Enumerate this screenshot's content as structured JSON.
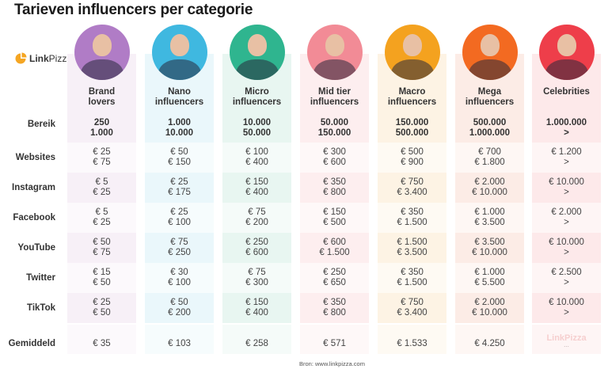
{
  "title": "Tarieven influencers per categorie",
  "logo": {
    "bold": "Link",
    "regular": "Pizza",
    "color": "#f5a623"
  },
  "row_labels": [
    "Bereik",
    "Websites",
    "Instagram",
    "Facebook",
    "YouTube",
    "Twitter",
    "TikTok",
    "Gemiddeld"
  ],
  "categories": [
    {
      "name_line1": "Brand",
      "name_line2": "lovers",
      "avatar_color": "#b07cc6",
      "band_color": "#f7f0f7",
      "light_color": "#fcf9fc",
      "bereik": [
        "250",
        "1.000"
      ],
      "websites": [
        "€ 25",
        "€ 75"
      ],
      "instagram": [
        "€ 5",
        "€ 25"
      ],
      "facebook": [
        "€ 5",
        "€ 25"
      ],
      "youtube": [
        "€ 50",
        "€ 75"
      ],
      "twitter": [
        "€ 15",
        "€ 50"
      ],
      "tiktok": [
        "€ 25",
        "€ 50"
      ],
      "gemiddeld": "€ 35"
    },
    {
      "name_line1": "Nano",
      "name_line2": "influencers",
      "avatar_color": "#3fb8e0",
      "band_color": "#eaf7fb",
      "light_color": "#f6fcfd",
      "bereik": [
        "1.000",
        "10.000"
      ],
      "websites": [
        "€ 50",
        "€ 150"
      ],
      "instagram": [
        "€ 25",
        "€ 175"
      ],
      "facebook": [
        "€ 25",
        "€ 100"
      ],
      "youtube": [
        "€ 75",
        "€ 250"
      ],
      "twitter": [
        "€ 30",
        "€ 100"
      ],
      "tiktok": [
        "€ 50",
        "€ 200"
      ],
      "gemiddeld": "€ 103"
    },
    {
      "name_line1": "Micro",
      "name_line2": "influencers",
      "avatar_color": "#2fb58f",
      "band_color": "#e8f6f1",
      "light_color": "#f5fbf9",
      "bereik": [
        "10.000",
        "50.000"
      ],
      "websites": [
        "€ 100",
        "€ 400"
      ],
      "instagram": [
        "€ 150",
        "€ 400"
      ],
      "facebook": [
        "€ 75",
        "€ 200"
      ],
      "youtube": [
        "€ 250",
        "€ 600"
      ],
      "twitter": [
        "€ 75",
        "€ 300"
      ],
      "tiktok": [
        "€ 150",
        "€ 400"
      ],
      "gemiddeld": "€ 258"
    },
    {
      "name_line1": "Mid tier",
      "name_line2": "influencers",
      "avatar_color": "#f28b96",
      "band_color": "#fdeeef",
      "light_color": "#fef8f8",
      "bereik": [
        "50.000",
        "150.000"
      ],
      "websites": [
        "€ 300",
        "€ 600"
      ],
      "instagram": [
        "€ 350",
        "€ 800"
      ],
      "facebook": [
        "€ 150",
        "€ 500"
      ],
      "youtube": [
        "€ 600",
        "€ 1.500"
      ],
      "twitter": [
        "€ 250",
        "€ 650"
      ],
      "tiktok": [
        "€ 350",
        "€ 800"
      ],
      "gemiddeld": "€ 571"
    },
    {
      "name_line1": "Macro",
      "name_line2": "influencers",
      "avatar_color": "#f4a21f",
      "band_color": "#fdf3e4",
      "light_color": "#fefaf3",
      "bereik": [
        "150.000",
        "500.000"
      ],
      "websites": [
        "€ 500",
        "€ 900"
      ],
      "instagram": [
        "€ 750",
        "€ 3.400"
      ],
      "facebook": [
        "€ 350",
        "€ 1.500"
      ],
      "youtube": [
        "€ 1.500",
        "€ 3.500"
      ],
      "twitter": [
        "€ 350",
        "€ 1.500"
      ],
      "tiktok": [
        "€ 750",
        "€ 3.400"
      ],
      "gemiddeld": "€ 1.533"
    },
    {
      "name_line1": "Mega",
      "name_line2": "influencers",
      "avatar_color": "#f36a21",
      "band_color": "#fcece6",
      "light_color": "#fef7f4",
      "bereik": [
        "500.000",
        "1.000.000"
      ],
      "websites": [
        "€ 700",
        "€ 1.800"
      ],
      "instagram": [
        "€ 2.000",
        "€ 10.000"
      ],
      "facebook": [
        "€ 1.000",
        "€ 3.500"
      ],
      "youtube": [
        "€ 3.500",
        "€ 10.000"
      ],
      "twitter": [
        "€ 1.000",
        "€ 5.500"
      ],
      "tiktok": [
        "€ 2.000",
        "€ 10.000"
      ],
      "gemiddeld": "€ 4.250"
    },
    {
      "name_line1": "Celebrities",
      "name_line2": "",
      "avatar_color": "#ee3e4a",
      "band_color": "#fde9ea",
      "light_color": "#fef5f5",
      "bereik": [
        "1.000.000",
        ">"
      ],
      "websites": [
        "€ 1.200",
        ">"
      ],
      "instagram": [
        "€ 10.000",
        ">"
      ],
      "facebook": [
        "€ 2.000",
        ">"
      ],
      "youtube": [
        "€ 10.000",
        ">"
      ],
      "twitter": [
        "€ 2.500",
        ">"
      ],
      "tiktok": [
        "€ 10.000",
        ">"
      ],
      "gemiddeld": "LinkPizza",
      "gemiddeld_sub": "..."
    }
  ],
  "source": "Bron: www.linkpizza.com"
}
